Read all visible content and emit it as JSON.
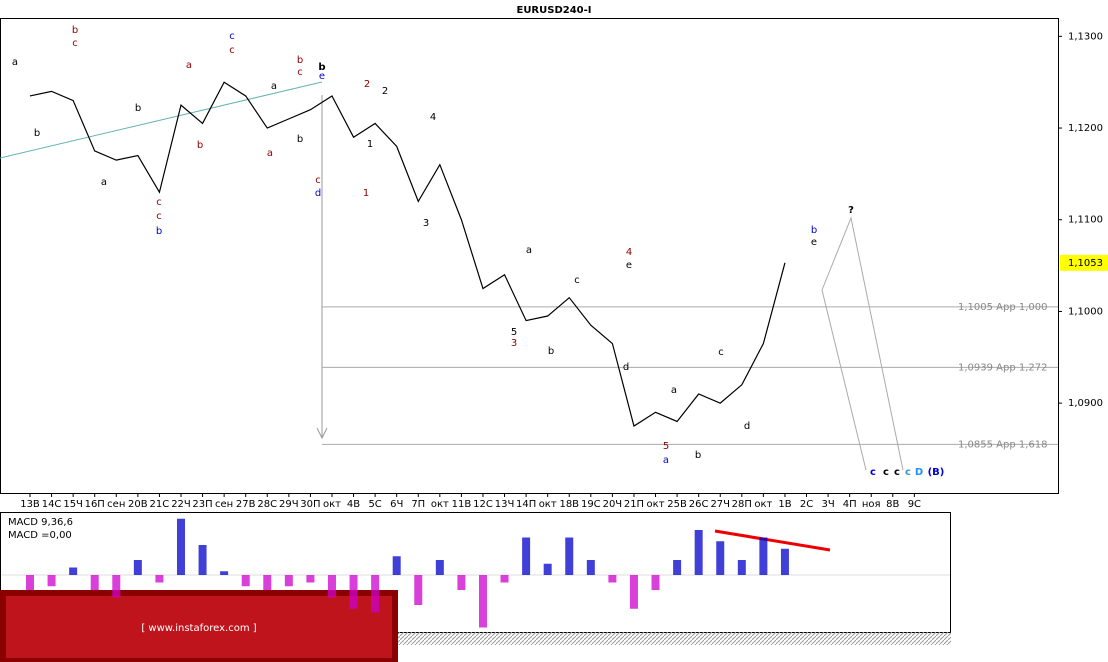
{
  "chart_data": {
    "type": "line",
    "title": "EURUSD240-I",
    "categories": [
      "13В",
      "14С",
      "15Ч",
      "16П",
      "сен",
      "20В",
      "21С",
      "22Ч",
      "23П",
      "сен",
      "27В",
      "28С",
      "29Ч",
      "30П",
      "окт",
      "4В",
      "5С",
      "6Ч",
      "7П",
      "окт",
      "11В",
      "12С",
      "13Ч",
      "14П",
      "окт",
      "18В",
      "19С",
      "20Ч",
      "21П",
      "окт",
      "25В",
      "26С",
      "27Ч",
      "28П",
      "окт",
      "1В",
      "2С",
      "3Ч",
      "4П",
      "ноя",
      "8В",
      "9С"
    ],
    "series": [
      {
        "name": "EURUSD",
        "color": "#000000",
        "values": [
          1.1235,
          1.124,
          1.123,
          1.1175,
          1.1165,
          1.117,
          1.113,
          1.1225,
          1.1205,
          1.125,
          1.1235,
          1.12,
          1.121,
          1.122,
          1.1235,
          1.119,
          1.1205,
          1.118,
          1.112,
          1.116,
          1.11,
          1.1025,
          1.104,
          1.099,
          1.0995,
          1.1015,
          1.0985,
          1.0965,
          1.0875,
          1.089,
          1.088,
          1.091,
          1.09,
          1.092,
          1.0965,
          1.1053,
          null,
          null,
          null,
          null,
          null,
          null
        ]
      }
    ],
    "ylim": [
      1.0802,
      1.132
    ],
    "yticks": [
      {
        "value": 1.13,
        "label": "1,1300"
      },
      {
        "value": 1.12,
        "label": "1,1200"
      },
      {
        "value": 1.11,
        "label": "1,1100"
      },
      {
        "value": 1.1,
        "label": "1,1000"
      },
      {
        "value": 1.09,
        "label": "1,0900"
      }
    ],
    "last_price": {
      "value": 1.1053,
      "label": "1,1053"
    },
    "levels": [
      {
        "value": 1.1005,
        "label": "1,1005 App 1,000"
      },
      {
        "value": 1.0939,
        "label": "1,0939 App 1,272"
      },
      {
        "value": 1.0855,
        "label": "1,0855 App 1,618"
      }
    ],
    "annotations": [
      {
        "text": "b",
        "color": "#8b0000"
      },
      {
        "text": "c",
        "color": "#8b0000"
      },
      {
        "text": "a",
        "color": "#000000"
      },
      {
        "text": "b",
        "color": "#000000"
      },
      {
        "text": "a",
        "color": "#000000"
      },
      {
        "text": "b",
        "color": "#000000"
      },
      {
        "text": "c",
        "color": "#8b0000"
      },
      {
        "text": "c",
        "color": "#8b0000"
      },
      {
        "text": "b",
        "color": "#0000cc"
      },
      {
        "text": "a",
        "color": "#8b0000"
      },
      {
        "text": "b",
        "color": "#8b0000"
      },
      {
        "text": "c",
        "color": "#0000cc"
      },
      {
        "text": "c",
        "color": "#8b0000"
      },
      {
        "text": "a",
        "color": "#000000"
      },
      {
        "text": "a",
        "color": "#8b0000"
      },
      {
        "text": "b",
        "color": "#8b0000"
      },
      {
        "text": "c",
        "color": "#8b0000"
      },
      {
        "text": "b",
        "color": "#000000"
      },
      {
        "text": "b",
        "color": "#000000"
      },
      {
        "text": "e",
        "color": "#0000cc"
      },
      {
        "text": "c",
        "color": "#8b0000"
      },
      {
        "text": "d",
        "color": "#0000cc"
      },
      {
        "text": "2",
        "color": "#8b0000"
      },
      {
        "text": "1",
        "color": "#000000"
      },
      {
        "text": "1",
        "color": "#8b0000"
      },
      {
        "text": "2",
        "color": "#000000"
      },
      {
        "text": "4",
        "color": "#000000"
      },
      {
        "text": "3",
        "color": "#000000"
      },
      {
        "text": "a",
        "color": "#000000"
      },
      {
        "text": "5",
        "color": "#000000"
      },
      {
        "text": "3",
        "color": "#8b0000"
      },
      {
        "text": "c",
        "color": "#000000"
      },
      {
        "text": "b",
        "color": "#000000"
      },
      {
        "text": "4",
        "color": "#8b0000"
      },
      {
        "text": "e",
        "color": "#000000"
      },
      {
        "text": "d",
        "color": "#000000"
      },
      {
        "text": "a",
        "color": "#000000"
      },
      {
        "text": "5",
        "color": "#8b0000"
      },
      {
        "text": "a",
        "color": "#0000cc"
      },
      {
        "text": "b",
        "color": "#000000"
      },
      {
        "text": "c",
        "color": "#000000"
      },
      {
        "text": "d",
        "color": "#000000"
      },
      {
        "text": "b",
        "color": "#0000cc"
      },
      {
        "text": "e",
        "color": "#000000"
      },
      {
        "text": "?",
        "color": "#000000"
      },
      {
        "text": "c",
        "color": "#0000cc"
      },
      {
        "text": "c",
        "color": "#000000"
      },
      {
        "text": "c",
        "color": "#000000"
      },
      {
        "text": "c",
        "color": "#3399cc"
      },
      {
        "text": "D",
        "color": "#1e90ff"
      },
      {
        "text": "(B)",
        "color": "#0000cc"
      }
    ],
    "macd_title": "MACD 9,36,6",
    "macd_value": "MACD =0,00",
    "macd_ylim": [
      -0.0016,
      0.0016
    ],
    "macd_colors": {
      "positive": "#0000cc",
      "negative": "#cc00cc"
    },
    "macd": [
      -0.0004,
      -0.0003,
      0.0002,
      -0.0004,
      -0.0006,
      0.0004,
      -0.0002,
      0.0015,
      0.0008,
      0.0001,
      -0.0003,
      -0.0004,
      -0.0003,
      -0.0002,
      -0.0006,
      -0.0009,
      -0.001,
      0.0005,
      -0.0008,
      0.0004,
      -0.0004,
      -0.0014,
      -0.0002,
      0.001,
      0.0003,
      0.001,
      0.0004,
      -0.0002,
      -0.0009,
      -0.0004,
      0.0004,
      0.0012,
      0.0009,
      0.0004,
      0.001,
      0.0007,
      null,
      null,
      null,
      null,
      null,
      null
    ],
    "watermark": "[ www.instaforex.com ]"
  }
}
